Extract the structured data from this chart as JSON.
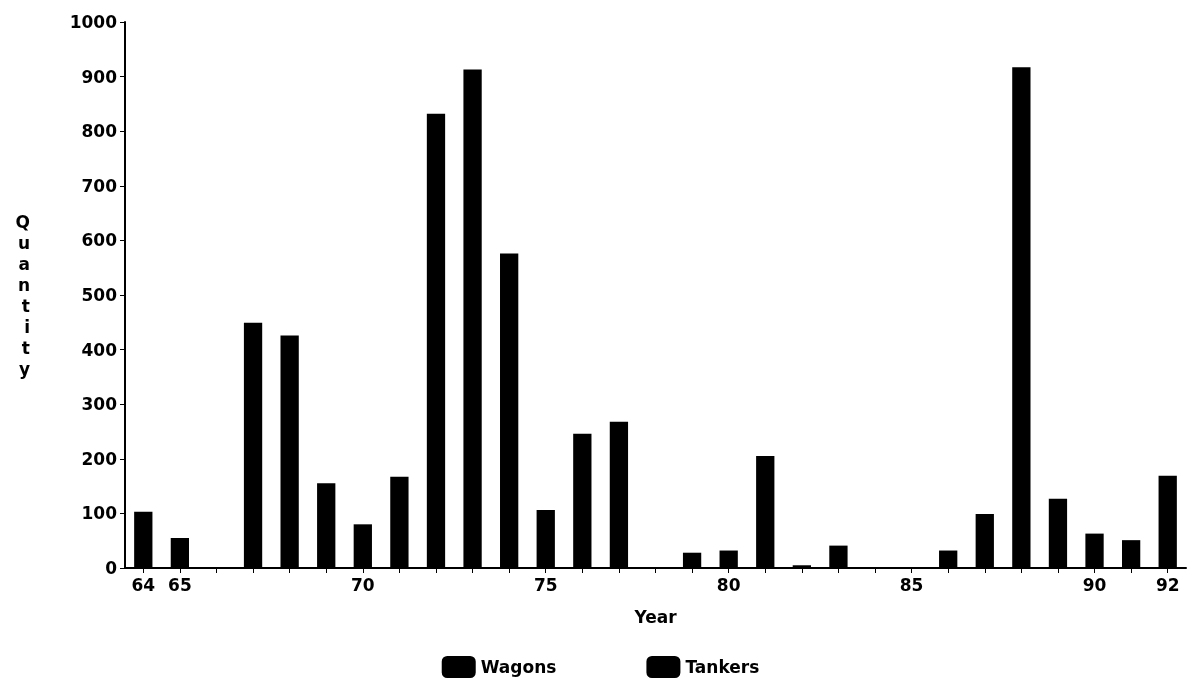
{
  "chart_data": {
    "type": "bar",
    "stacked": true,
    "xlabel": "Year",
    "ylabel": "Quantity",
    "categories": [
      "64",
      "65",
      null,
      null,
      null,
      null,
      "70",
      null,
      null,
      null,
      null,
      "75",
      null,
      null,
      null,
      null,
      "80",
      null,
      null,
      null,
      null,
      "85",
      null,
      null,
      null,
      null,
      "90",
      null,
      "92"
    ],
    "series": [
      {
        "name": "Wagons",
        "color": "#000000",
        "values": [
          103,
          55,
          0,
          449,
          426,
          155,
          80,
          167,
          832,
          913,
          576,
          106,
          246,
          268,
          0,
          28,
          32,
          205,
          5,
          41,
          0,
          0,
          32,
          99,
          917,
          127,
          63,
          51,
          169
        ]
      },
      {
        "name": "Tankers",
        "color": "#000000",
        "values": [
          null,
          null,
          null,
          null,
          null,
          null,
          null,
          null,
          null,
          null,
          null,
          null,
          null,
          null,
          null,
          null,
          null,
          null,
          null,
          null,
          null,
          null,
          null,
          null,
          null,
          null,
          null,
          null,
          null
        ]
      }
    ],
    "ylim": [
      0,
      1000
    ],
    "yticks": [
      0,
      100,
      200,
      300,
      400,
      500,
      600,
      700,
      800,
      900,
      1000
    ],
    "grid": false,
    "legend": "bottom"
  }
}
